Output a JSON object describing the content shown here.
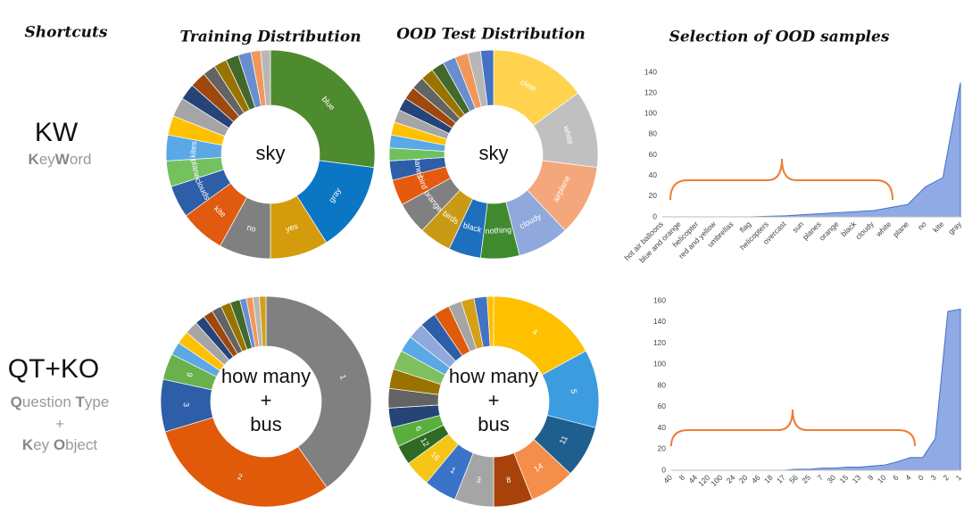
{
  "shortcuts_header": "Shortcuts",
  "column_headers": [
    "Training Distribution",
    "OOD Test Distribution",
    "Selection of OOD samples"
  ],
  "rows": [
    {
      "label": "KW",
      "description": [
        "KeyWord"
      ]
    },
    {
      "label": "QT+KO",
      "description": [
        "Question Type",
        "+",
        "Key Object"
      ]
    }
  ],
  "chart_data": [
    {
      "type": "donut",
      "center_text": [
        "sky"
      ],
      "categories": [
        "blue",
        "gray",
        "yes",
        "no",
        "kite",
        "clouds",
        "plane",
        "kites",
        null,
        null,
        null,
        null,
        null,
        null,
        null,
        null,
        null,
        null
      ],
      "values": [
        27,
        14,
        9,
        8,
        7,
        5,
        4,
        4,
        3,
        3,
        2.5,
        2.5,
        2,
        2,
        2,
        2,
        1.5,
        1.5
      ],
      "colors": [
        "#4e8a2e",
        "#0b76c4",
        "#d49c0c",
        "#808080",
        "#e05a10",
        "#2e5ea8",
        "#74c160",
        "#5aa9e6",
        "#ffc000",
        "#a5a5a5",
        "#264478",
        "#9e480e",
        "#636363",
        "#997300",
        "#43682b",
        "#698ed0",
        "#f1975a",
        "#b7b7b7"
      ]
    },
    {
      "type": "donut",
      "center_text": [
        "sky"
      ],
      "categories": [
        "clear",
        "white",
        "airplane",
        "cloudy",
        "nothing",
        "black",
        "birds",
        "orange",
        "bird",
        "planes",
        null,
        null,
        null,
        null,
        null,
        null,
        null,
        null,
        null,
        null,
        null,
        null,
        null
      ],
      "values": [
        15,
        12,
        11,
        8,
        6,
        5,
        5,
        5,
        4,
        3,
        2,
        2,
        2,
        2,
        2,
        2,
        2,
        2,
        2,
        2,
        2,
        2,
        2
      ],
      "colors": [
        "#ffd34d",
        "#c0c0c0",
        "#f4a77a",
        "#8fa9dc",
        "#3f8a2f",
        "#1f6fbf",
        "#c99a16",
        "#808080",
        "#e55a0e",
        "#2e5ea8",
        "#70c060",
        "#5aa9e6",
        "#ffc000",
        "#a5a5a5",
        "#264478",
        "#9e480e",
        "#636363",
        "#997300",
        "#43682b",
        "#698ed0",
        "#f1975a",
        "#b7b7b7",
        "#4472c4"
      ]
    },
    {
      "type": "donut",
      "center_text": [
        "how many",
        "+",
        "bus"
      ],
      "categories": [
        "1",
        "2",
        "3",
        "6",
        null,
        null,
        null,
        null,
        null,
        null,
        null,
        null,
        null,
        null,
        null,
        null
      ],
      "values": [
        40,
        30,
        8,
        4,
        2,
        2,
        2,
        1.5,
        1.5,
        1.5,
        1.5,
        1.5,
        1,
        1,
        1,
        1
      ],
      "colors": [
        "#808080",
        "#e05a0a",
        "#2e5ea8",
        "#6ab04c",
        "#5aa9e6",
        "#ffc000",
        "#a5a5a5",
        "#264478",
        "#9e480e",
        "#636363",
        "#997300",
        "#43682b",
        "#698ed0",
        "#f1975a",
        "#b7b7b7",
        "#d4a017"
      ]
    },
    {
      "type": "donut",
      "center_text": [
        "how many",
        "+",
        "bus"
      ],
      "categories": [
        "4",
        "5",
        "11",
        "14",
        "8",
        "3",
        "1",
        "16",
        "12",
        "6",
        null,
        null,
        null,
        null,
        null,
        null,
        null,
        null,
        null,
        null,
        null,
        null
      ],
      "values": [
        17,
        12,
        8,
        7,
        6,
        6,
        5,
        4,
        3,
        3,
        3,
        3,
        3,
        3,
        2.5,
        2.5,
        2.5,
        2.5,
        2,
        2,
        2,
        1
      ],
      "colors": [
        "#ffc000",
        "#3d9be0",
        "#1f5f8f",
        "#f58e4a",
        "#a8420a",
        "#a5a5a5",
        "#3a74c8",
        "#f5c518",
        "#2f6b24",
        "#5aaf3c",
        "#264478",
        "#636363",
        "#997300",
        "#7fbf5f",
        "#5aa9e6",
        "#8fa9dc",
        "#2e5ea8",
        "#e05a0a",
        "#a5a5a5",
        "#d4a017",
        "#4472c4",
        "#ffc000"
      ]
    },
    {
      "type": "area",
      "color": "#7b9be0",
      "categories": [
        "hot air balloons",
        "blue and orange",
        "helicopter",
        "red and yellow",
        "umbrellas",
        "flag",
        "helicopters",
        "overcast",
        "sun",
        "planes",
        "orange",
        "black",
        "cloudy",
        "white",
        "plane",
        "no",
        "kite",
        "gray"
      ],
      "values": [
        0,
        0,
        0,
        0,
        0,
        0,
        0.5,
        1,
        2,
        3,
        4,
        5,
        6,
        9,
        12,
        29,
        38,
        130
      ],
      "ylim": [
        0,
        140
      ],
      "yticks": [
        0,
        20,
        40,
        60,
        80,
        100,
        120,
        140
      ]
    },
    {
      "type": "area",
      "color": "#7b9be0",
      "categories": [
        "40",
        "8",
        "44",
        "120",
        "100",
        "24",
        "20",
        "46",
        "18",
        "17",
        "56",
        "25",
        "7",
        "30",
        "15",
        "13",
        "9",
        "10",
        "6",
        "4",
        "0",
        "3",
        "2",
        "1"
      ],
      "values": [
        0,
        0,
        0,
        0,
        0,
        0,
        0,
        0,
        0,
        0,
        1,
        1,
        2,
        2,
        3,
        3,
        4,
        5,
        8,
        12,
        12,
        30,
        150,
        152
      ],
      "ylim": [
        0,
        160
      ],
      "yticks": [
        0,
        20,
        40,
        60,
        80,
        100,
        120,
        140,
        160
      ]
    }
  ]
}
